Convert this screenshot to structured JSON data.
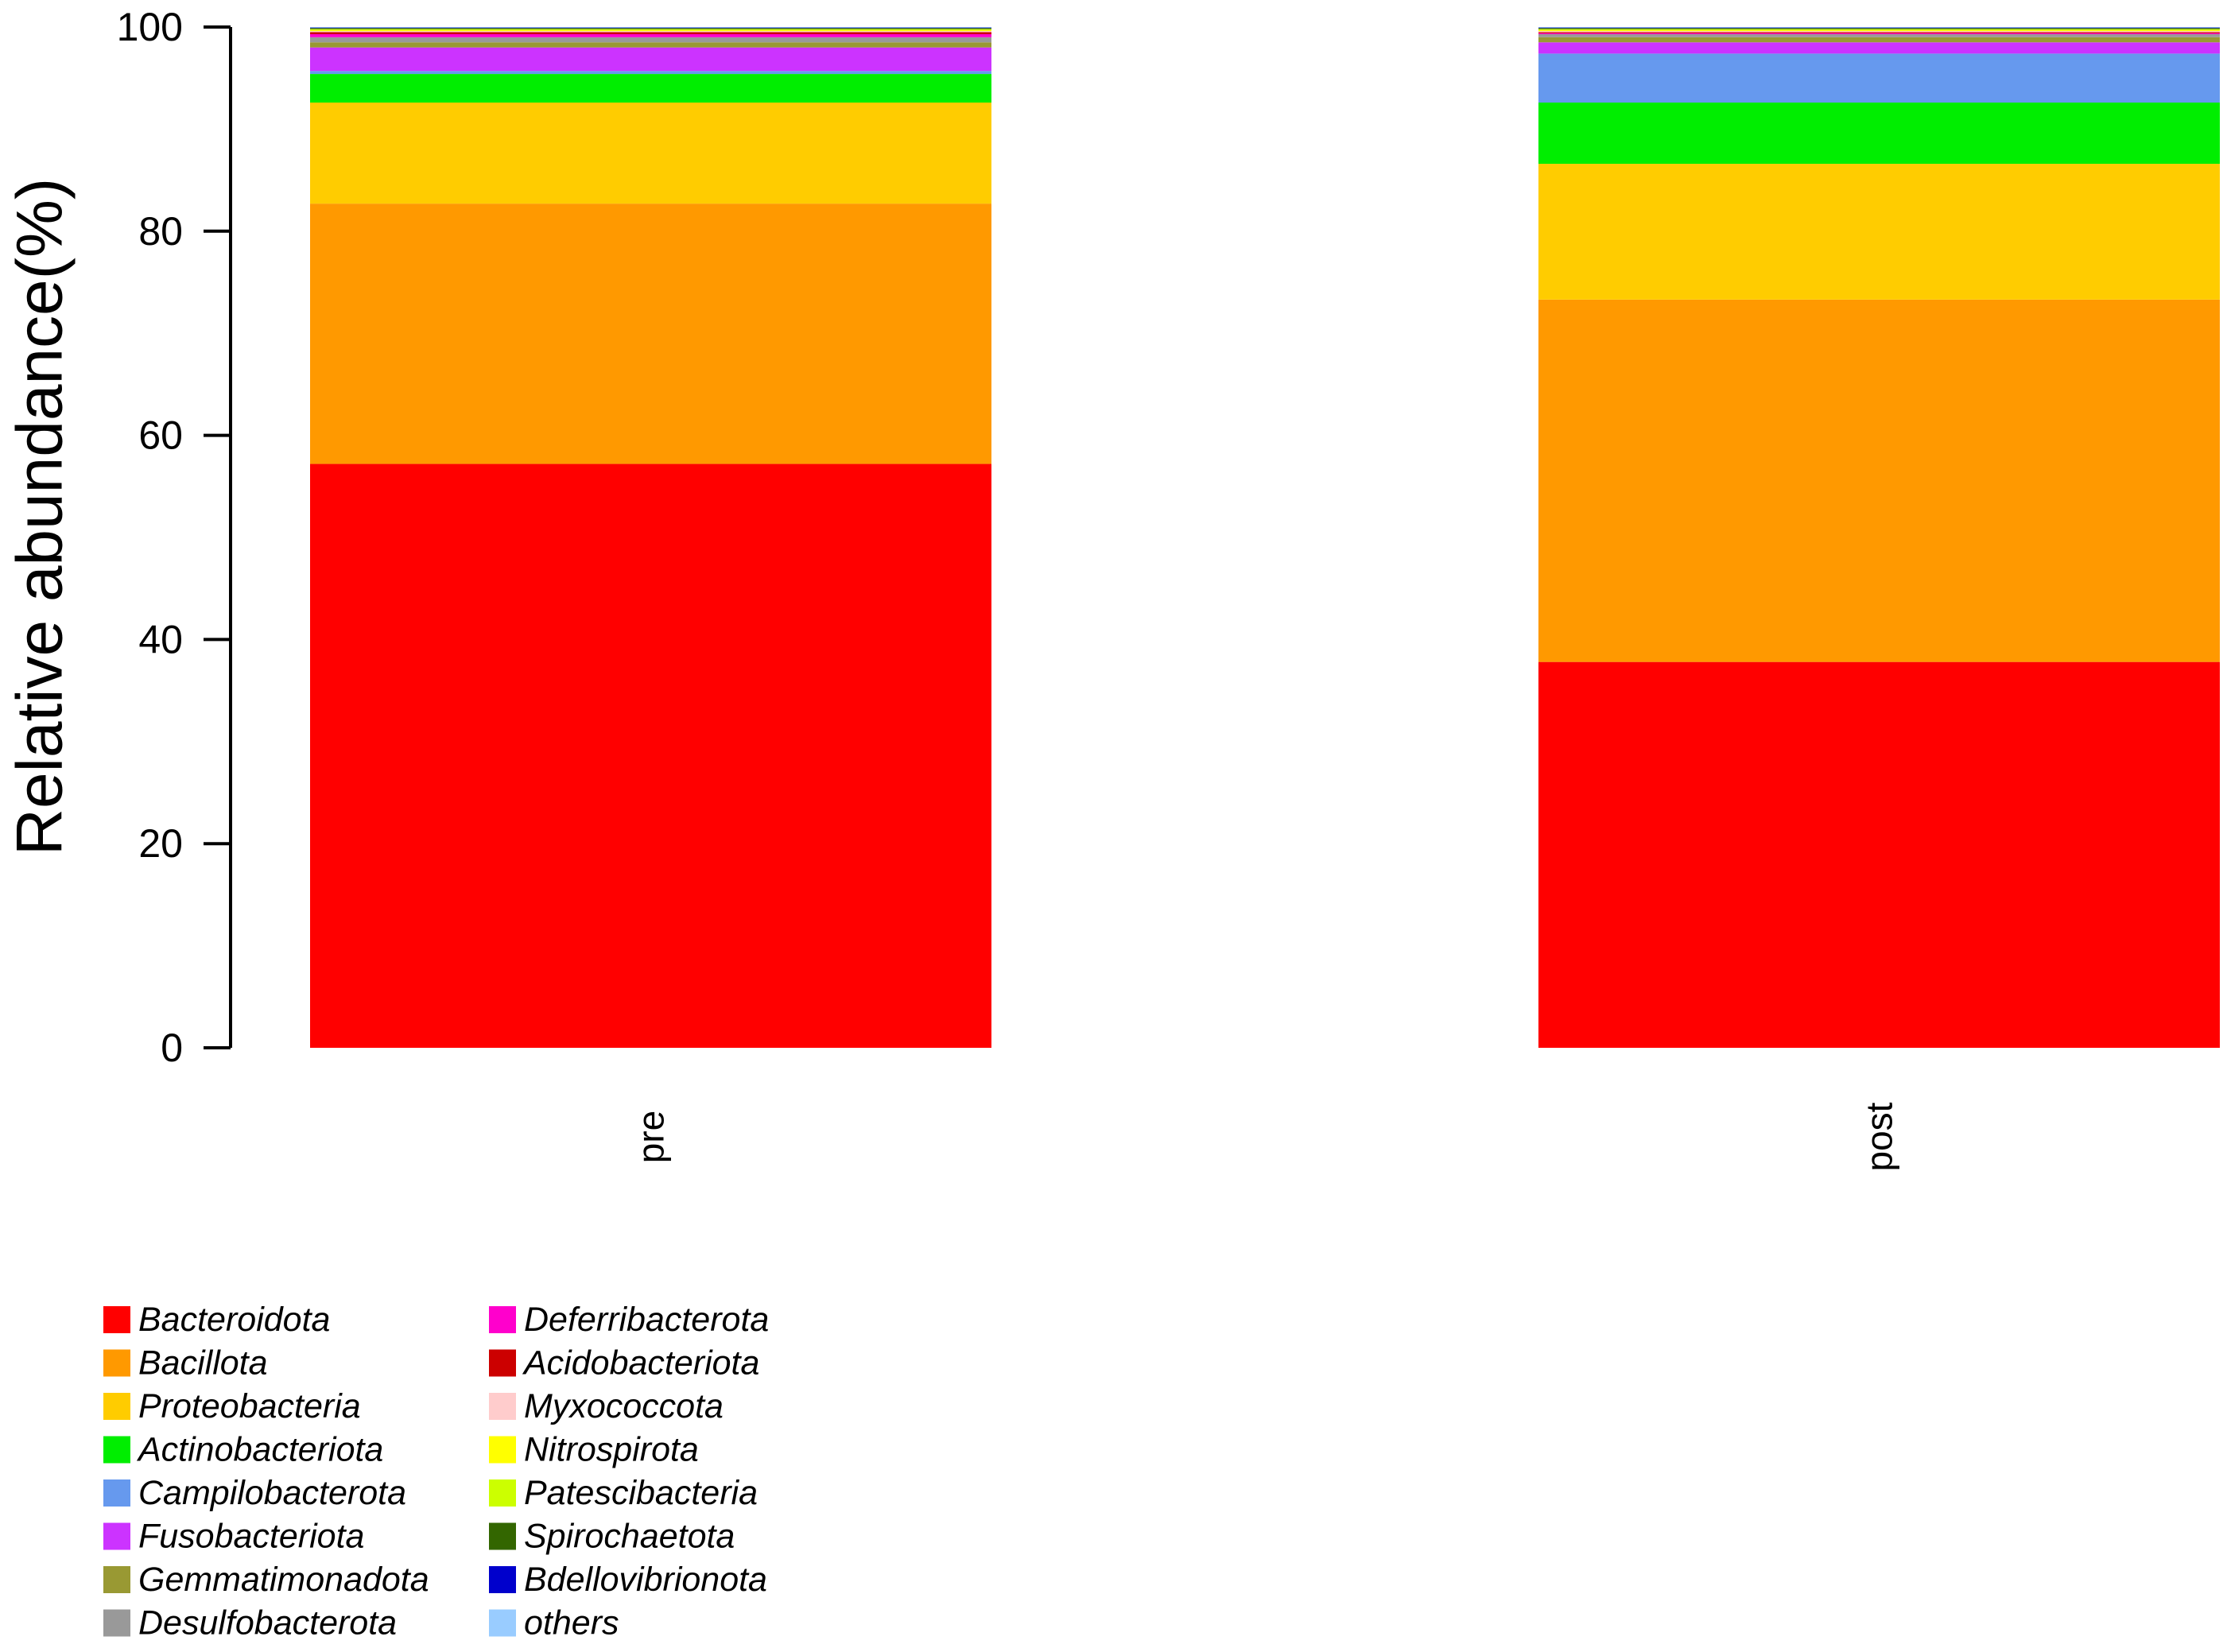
{
  "chart_data": {
    "type": "bar",
    "stacked": true,
    "title": "",
    "xlabel": "",
    "ylabel": "Relative abundance(%)",
    "ylim": [
      0,
      100
    ],
    "yticks": [
      0,
      20,
      40,
      60,
      80,
      100
    ],
    "categories": [
      "pre",
      "post"
    ],
    "legend_position": "bottom-left",
    "series": [
      {
        "name": "Bacteroidota",
        "color": "#FF0000",
        "values": [
          57.2,
          37.8
        ]
      },
      {
        "name": "Bacillota",
        "color": "#FF9900",
        "values": [
          25.5,
          35.5
        ]
      },
      {
        "name": "Proteobacteria",
        "color": "#FFCC00",
        "values": [
          9.9,
          13.3
        ]
      },
      {
        "name": "Actinobacteriota",
        "color": "#00EE00",
        "values": [
          2.8,
          6.0
        ]
      },
      {
        "name": "Campilobacterota",
        "color": "#6699EE",
        "values": [
          0.3,
          4.8
        ]
      },
      {
        "name": "Fusobacteriota",
        "color": "#CC33FF",
        "values": [
          2.3,
          1.1
        ]
      },
      {
        "name": "Gemmatimonadota",
        "color": "#999933",
        "values": [
          0.5,
          0.5
        ]
      },
      {
        "name": "Desulfobacterota",
        "color": "#999999",
        "values": [
          0.5,
          0.3
        ]
      },
      {
        "name": "Deferribacterota",
        "color": "#FF00CC",
        "values": [
          0.3,
          0.1
        ]
      },
      {
        "name": "Acidobacteriota",
        "color": "#CC0000",
        "values": [
          0.2,
          0.1
        ]
      },
      {
        "name": "Myxococcota",
        "color": "#FFCCCC",
        "values": [
          0.1,
          0.1
        ]
      },
      {
        "name": "Nitrospirota",
        "color": "#FFFF00",
        "values": [
          0.1,
          0.1
        ]
      },
      {
        "name": "Patescibacteria",
        "color": "#CCFF00",
        "values": [
          0.1,
          0.1
        ]
      },
      {
        "name": "Spirochaetota",
        "color": "#336600",
        "values": [
          0.1,
          0.1
        ]
      },
      {
        "name": "Bdellovibrionota",
        "color": "#0000CC",
        "values": [
          0.05,
          0.05
        ]
      },
      {
        "name": "others",
        "color": "#99CCFF",
        "values": [
          0.05,
          0.05
        ]
      }
    ]
  }
}
